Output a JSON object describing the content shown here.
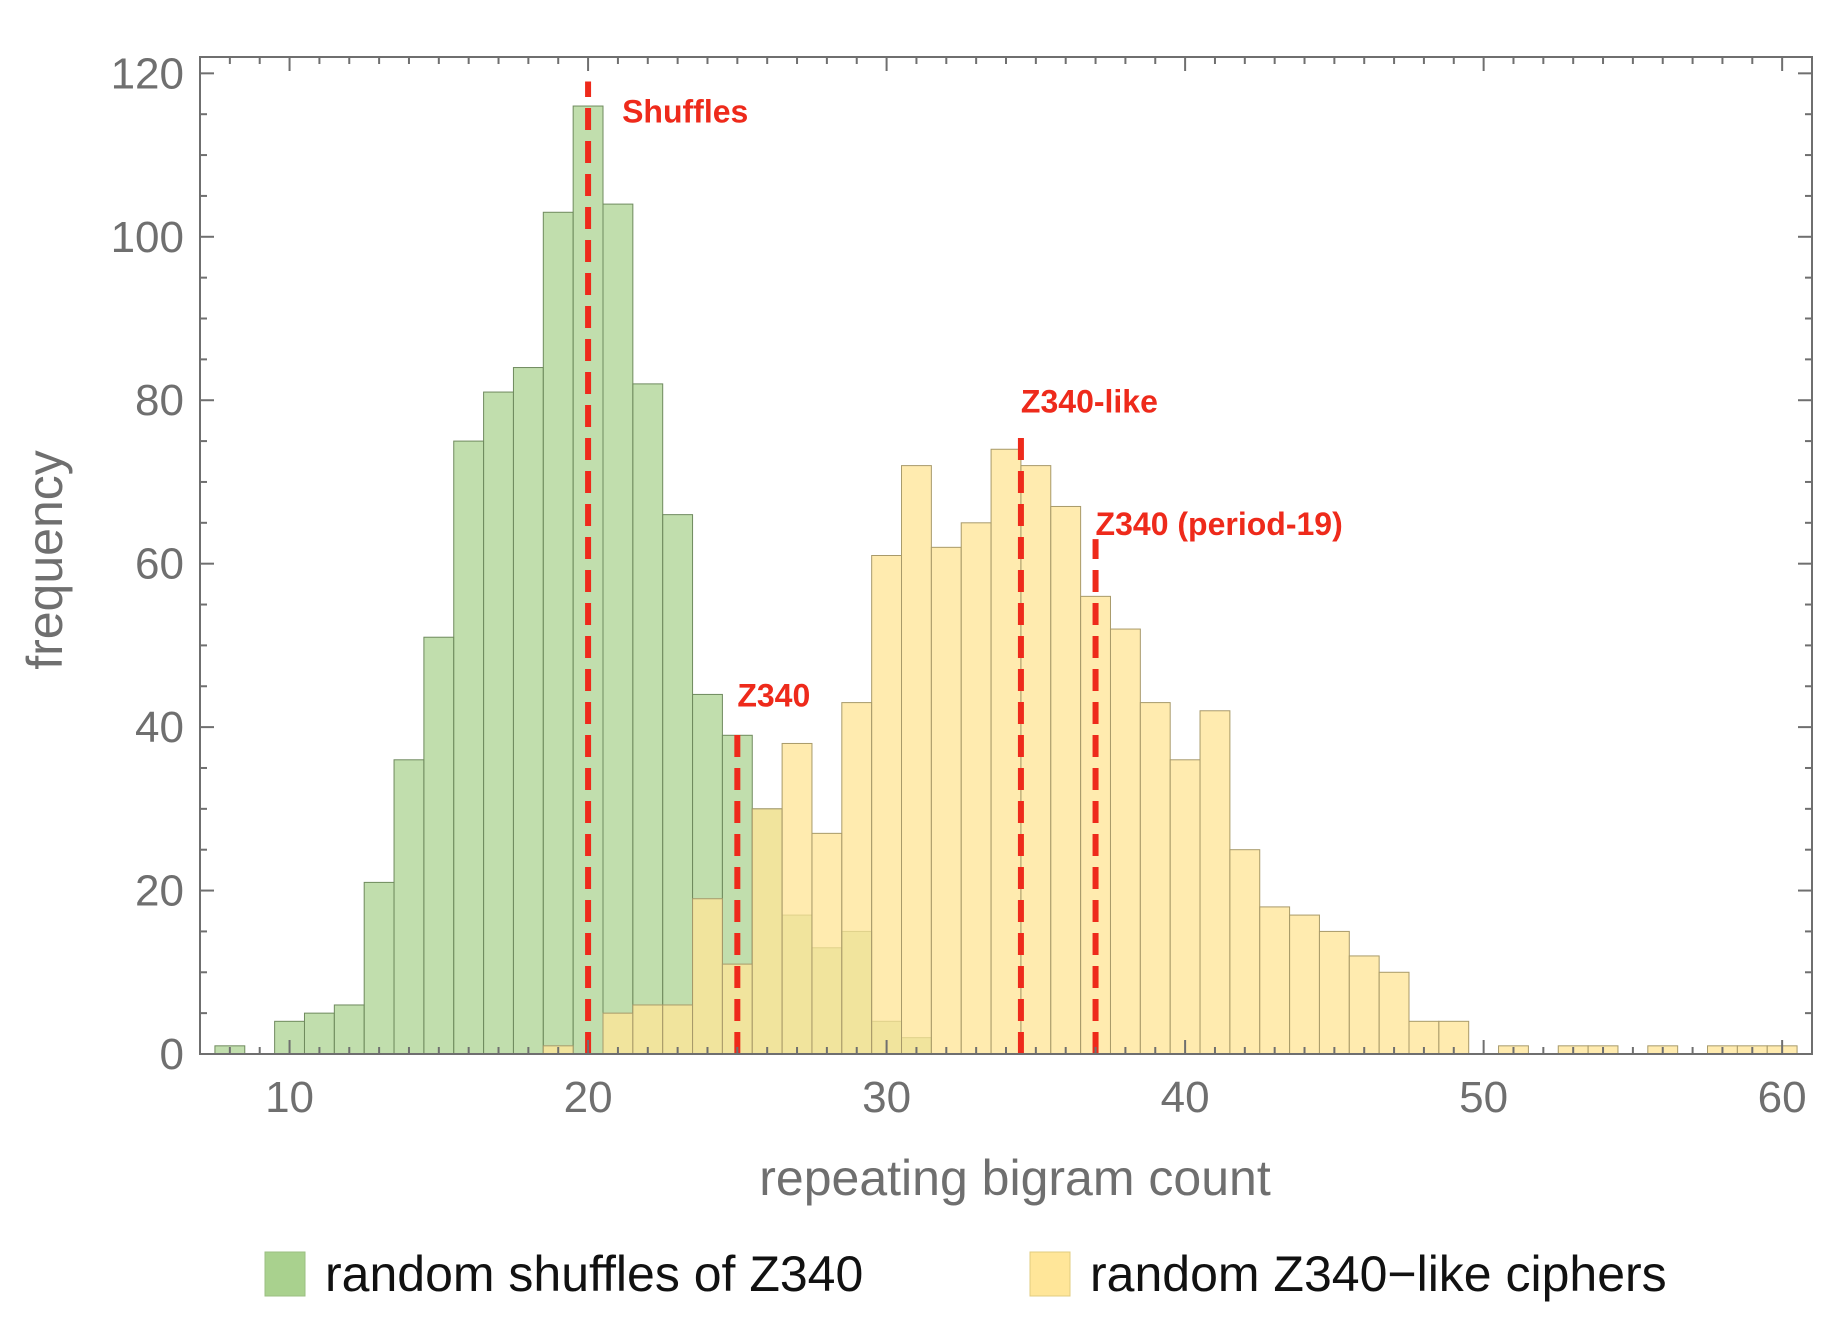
{
  "chart_data": {
    "type": "bar",
    "xlabel": "repeating bigram count",
    "ylabel": "frequency",
    "xlim": [
      7,
      61
    ],
    "ylim": [
      0,
      122
    ],
    "xticks": [
      10,
      20,
      30,
      40,
      50,
      60
    ],
    "yticks": [
      0,
      20,
      40,
      60,
      80,
      100,
      120
    ],
    "x_tick_labels": [
      "10",
      "20",
      "30",
      "40",
      "50",
      "60"
    ],
    "y_tick_labels": [
      "0",
      "20",
      "40",
      "60",
      "80",
      "100",
      "120"
    ],
    "bin_width": 1,
    "grid": false,
    "legend_position": "bottom",
    "series": [
      {
        "name": "random shuffles of Z340",
        "color": "#a9d18e",
        "bins": [
          {
            "x": 8,
            "value": 1
          },
          {
            "x": 10,
            "value": 4
          },
          {
            "x": 11,
            "value": 5
          },
          {
            "x": 12,
            "value": 6
          },
          {
            "x": 13,
            "value": 21
          },
          {
            "x": 14,
            "value": 36
          },
          {
            "x": 15,
            "value": 51
          },
          {
            "x": 16,
            "value": 75
          },
          {
            "x": 17,
            "value": 81
          },
          {
            "x": 18,
            "value": 84
          },
          {
            "x": 19,
            "value": 103
          },
          {
            "x": 20,
            "value": 116
          },
          {
            "x": 21,
            "value": 104
          },
          {
            "x": 22,
            "value": 82
          },
          {
            "x": 23,
            "value": 66
          },
          {
            "x": 24,
            "value": 44
          },
          {
            "x": 25,
            "value": 39
          },
          {
            "x": 26,
            "value": 30
          },
          {
            "x": 27,
            "value": 17
          },
          {
            "x": 28,
            "value": 13
          },
          {
            "x": 29,
            "value": 15
          },
          {
            "x": 30,
            "value": 4
          },
          {
            "x": 31,
            "value": 2
          }
        ]
      },
      {
        "name": "random Z340−like ciphers",
        "color": "#ffe699",
        "bins": [
          {
            "x": 19,
            "value": 1
          },
          {
            "x": 21,
            "value": 5
          },
          {
            "x": 22,
            "value": 6
          },
          {
            "x": 23,
            "value": 6
          },
          {
            "x": 24,
            "value": 19
          },
          {
            "x": 25,
            "value": 11
          },
          {
            "x": 26,
            "value": 30
          },
          {
            "x": 27,
            "value": 38
          },
          {
            "x": 28,
            "value": 27
          },
          {
            "x": 29,
            "value": 43
          },
          {
            "x": 30,
            "value": 61
          },
          {
            "x": 31,
            "value": 72
          },
          {
            "x": 32,
            "value": 62
          },
          {
            "x": 33,
            "value": 65
          },
          {
            "x": 34,
            "value": 74
          },
          {
            "x": 35,
            "value": 72
          },
          {
            "x": 36,
            "value": 67
          },
          {
            "x": 37,
            "value": 56
          },
          {
            "x": 38,
            "value": 52
          },
          {
            "x": 39,
            "value": 43
          },
          {
            "x": 40,
            "value": 36
          },
          {
            "x": 41,
            "value": 42
          },
          {
            "x": 42,
            "value": 25
          },
          {
            "x": 43,
            "value": 18
          },
          {
            "x": 44,
            "value": 17
          },
          {
            "x": 45,
            "value": 15
          },
          {
            "x": 46,
            "value": 12
          },
          {
            "x": 47,
            "value": 10
          },
          {
            "x": 48,
            "value": 4
          },
          {
            "x": 49,
            "value": 4
          },
          {
            "x": 51,
            "value": 1
          },
          {
            "x": 53,
            "value": 1
          },
          {
            "x": 54,
            "value": 1
          },
          {
            "x": 56,
            "value": 1
          },
          {
            "x": 58,
            "value": 1
          },
          {
            "x": 59,
            "value": 1
          },
          {
            "x": 60,
            "value": 1
          }
        ]
      }
    ],
    "annotations": [
      {
        "label": "Shuffles",
        "x": 20,
        "y_top": 119,
        "color": "#ee2a1b"
      },
      {
        "label": "Z340",
        "x": 25,
        "y_top": 40,
        "color": "#ee2a1b"
      },
      {
        "label": "Z340-like",
        "x": 34.5,
        "y_top": 76,
        "color": "#ee2a1b"
      },
      {
        "label": "Z340 (period-19)",
        "x": 37,
        "y_top": 63,
        "color": "#ee2a1b"
      }
    ]
  }
}
